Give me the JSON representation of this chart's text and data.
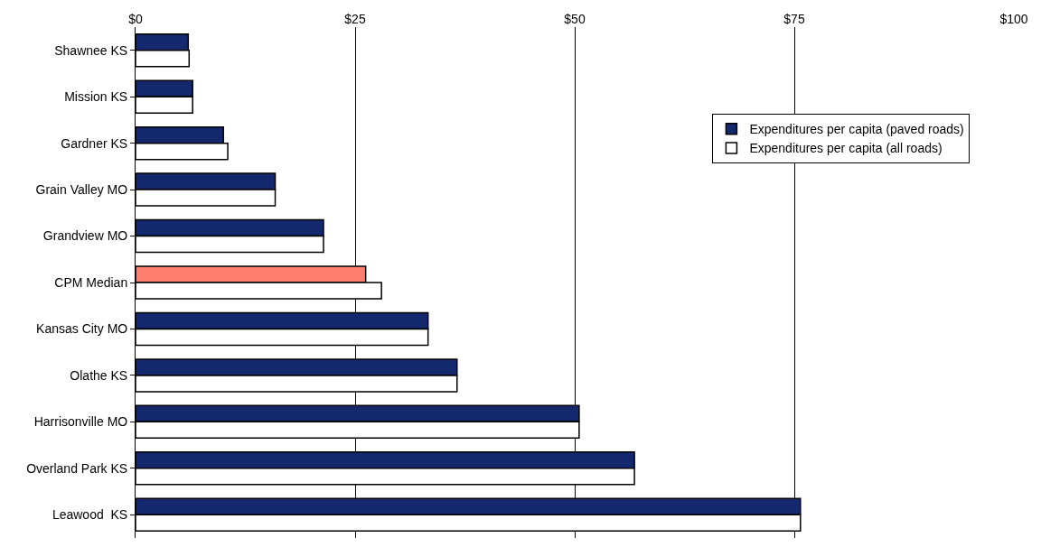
{
  "chart_data": {
    "type": "bar",
    "orientation": "horizontal",
    "categories": [
      "Shawnee KS",
      "Mission KS",
      "Gardner KS",
      "Grain Valley MO",
      "Grandview MO",
      "CPM Median",
      "Kansas City MO",
      "Olathe KS",
      "Harrisonville MO",
      "Overland Park KS",
      "Leawood  KS"
    ],
    "series": [
      {
        "name": "Expenditures per capita (paved roads)",
        "color": "#14286e",
        "colors": [
          "#14286e",
          "#14286e",
          "#14286e",
          "#14286e",
          "#14286e",
          "#ff7f6e",
          "#14286e",
          "#14286e",
          "#14286e",
          "#14286e",
          "#14286e"
        ],
        "values": [
          6.0,
          6.5,
          10.0,
          15.9,
          21.4,
          26.2,
          33.3,
          36.6,
          50.5,
          56.8,
          75.7
        ]
      },
      {
        "name": "Expenditures per capita (all roads)",
        "color": "#ffffff",
        "values": [
          6.1,
          6.5,
          10.5,
          15.9,
          21.4,
          28.0,
          33.3,
          36.6,
          50.5,
          56.8,
          75.7
        ]
      }
    ],
    "xlim": [
      0,
      100
    ],
    "xticks": [
      {
        "value": 0,
        "label": "$0"
      },
      {
        "value": 25,
        "label": "$25"
      },
      {
        "value": 50,
        "label": "$50"
      },
      {
        "value": 75,
        "label": "$75"
      },
      {
        "value": 100,
        "label": "$100"
      }
    ],
    "grid": "x",
    "legend": "top right"
  }
}
